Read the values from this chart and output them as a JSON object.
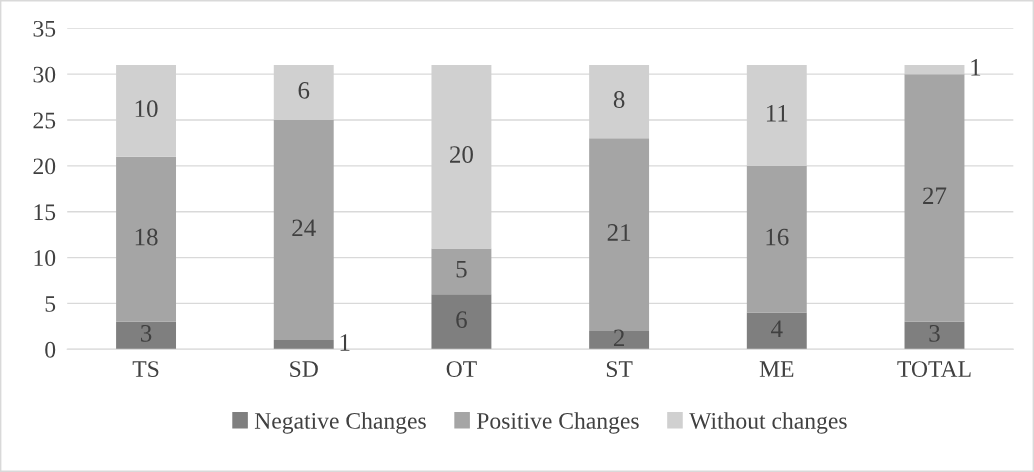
{
  "chart_data": {
    "type": "bar",
    "stacked": true,
    "categories": [
      "TS",
      "SD",
      "OT",
      "ST",
      "ME",
      "TOTAL"
    ],
    "series": [
      {
        "name": "Negative Changes",
        "color": "#7f7f7f",
        "values": [
          3,
          1,
          6,
          2,
          4,
          3
        ]
      },
      {
        "name": "Positive Changes",
        "color": "#a5a5a5",
        "values": [
          18,
          24,
          5,
          21,
          16,
          27
        ]
      },
      {
        "name": "Without changes",
        "color": "#d0d0d0",
        "values": [
          10,
          6,
          20,
          8,
          11,
          1
        ]
      }
    ],
    "ylim": [
      0,
      35
    ],
    "yticks": [
      0,
      5,
      10,
      15,
      20,
      25,
      30,
      35
    ],
    "grid": "y",
    "legend": "bottom",
    "data_labels": true
  }
}
